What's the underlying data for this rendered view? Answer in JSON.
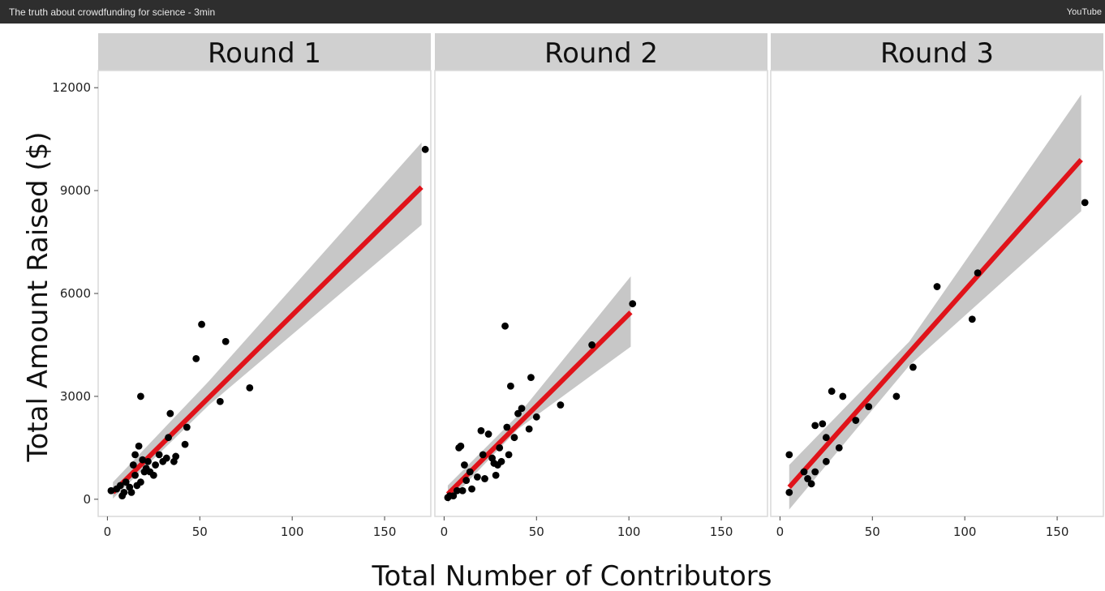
{
  "window": {
    "title": "The truth about crowdfunding for science - 3min",
    "brand": "YouTube"
  },
  "colors": {
    "topbar": "#2e2e2e",
    "panel_strip": "#d0d0d0",
    "confidence_band": "#c4c4c4",
    "fit_line": "#e0131a",
    "points": "#000000"
  },
  "chart_data": {
    "type": "scatter",
    "xlabel": "Total Number of Contributors",
    "ylabel": "Total Amount Raised ($)",
    "xlim": [
      -5,
      175
    ],
    "ylim": [
      -500,
      12500
    ],
    "x_ticks": [
      0,
      50,
      100,
      150
    ],
    "y_ticks": [
      0,
      3000,
      6000,
      9000,
      12000
    ],
    "grid": false,
    "trendline": "linear fit with confidence band",
    "panels": [
      {
        "name": "Round 1",
        "points": [
          [
            2,
            250
          ],
          [
            5,
            300
          ],
          [
            7,
            400
          ],
          [
            8,
            100
          ],
          [
            9,
            200
          ],
          [
            10,
            500
          ],
          [
            12,
            350
          ],
          [
            13,
            200
          ],
          [
            14,
            1000
          ],
          [
            15,
            1300
          ],
          [
            15,
            700
          ],
          [
            16,
            400
          ],
          [
            17,
            1550
          ],
          [
            18,
            500
          ],
          [
            18,
            3000
          ],
          [
            19,
            1150
          ],
          [
            20,
            800
          ],
          [
            21,
            900
          ],
          [
            22,
            1100
          ],
          [
            23,
            800
          ],
          [
            25,
            700
          ],
          [
            26,
            1000
          ],
          [
            28,
            1300
          ],
          [
            30,
            1100
          ],
          [
            32,
            1200
          ],
          [
            33,
            1800
          ],
          [
            34,
            2500
          ],
          [
            36,
            1100
          ],
          [
            37,
            1250
          ],
          [
            42,
            1600
          ],
          [
            43,
            2100
          ],
          [
            48,
            4100
          ],
          [
            51,
            5100
          ],
          [
            61,
            2850
          ],
          [
            64,
            4600
          ],
          [
            77,
            3250
          ],
          [
            172,
            10200
          ]
        ],
        "fit": {
          "x": [
            3,
            170
          ],
          "y": [
            200,
            9100
          ]
        },
        "band_lower": [
          [
            3,
            20
          ],
          [
            55,
            2750
          ],
          [
            170,
            8000
          ]
        ],
        "band_upper": [
          [
            3,
            500
          ],
          [
            55,
            3450
          ],
          [
            170,
            10400
          ]
        ]
      },
      {
        "name": "Round 2",
        "points": [
          [
            2,
            50
          ],
          [
            3,
            100
          ],
          [
            5,
            100
          ],
          [
            7,
            250
          ],
          [
            8,
            1500
          ],
          [
            9,
            1550
          ],
          [
            10,
            250
          ],
          [
            11,
            1000
          ],
          [
            12,
            550
          ],
          [
            14,
            800
          ],
          [
            15,
            300
          ],
          [
            18,
            650
          ],
          [
            20,
            2000
          ],
          [
            21,
            1300
          ],
          [
            22,
            600
          ],
          [
            24,
            1900
          ],
          [
            26,
            1200
          ],
          [
            27,
            1050
          ],
          [
            28,
            700
          ],
          [
            29,
            1000
          ],
          [
            30,
            1500
          ],
          [
            31,
            1100
          ],
          [
            33,
            5050
          ],
          [
            34,
            2100
          ],
          [
            35,
            1300
          ],
          [
            36,
            3300
          ],
          [
            38,
            1800
          ],
          [
            40,
            2500
          ],
          [
            42,
            2650
          ],
          [
            46,
            2050
          ],
          [
            47,
            3550
          ],
          [
            50,
            2400
          ],
          [
            63,
            2750
          ],
          [
            80,
            4500
          ],
          [
            102,
            5700
          ]
        ],
        "fit": {
          "x": [
            2,
            101
          ],
          "y": [
            150,
            5450
          ]
        },
        "band_lower": [
          [
            2,
            -100
          ],
          [
            40,
            2050
          ],
          [
            101,
            4450
          ]
        ],
        "band_upper": [
          [
            2,
            400
          ],
          [
            40,
            2450
          ],
          [
            101,
            6500
          ]
        ]
      },
      {
        "name": "Round 3",
        "points": [
          [
            5,
            1300
          ],
          [
            5,
            200
          ],
          [
            13,
            800
          ],
          [
            15,
            600
          ],
          [
            17,
            450
          ],
          [
            19,
            800
          ],
          [
            19,
            2150
          ],
          [
            23,
            2200
          ],
          [
            25,
            1100
          ],
          [
            25,
            1800
          ],
          [
            28,
            3150
          ],
          [
            32,
            1500
          ],
          [
            34,
            3000
          ],
          [
            41,
            2300
          ],
          [
            48,
            2700
          ],
          [
            63,
            3000
          ],
          [
            72,
            3850
          ],
          [
            85,
            6200
          ],
          [
            104,
            5250
          ],
          [
            107,
            6600
          ],
          [
            165,
            8650
          ]
        ],
        "fit": {
          "x": [
            5,
            163
          ],
          "y": [
            350,
            9900
          ]
        },
        "band_lower": [
          [
            5,
            -300
          ],
          [
            70,
            3900
          ],
          [
            163,
            8400
          ]
        ],
        "band_upper": [
          [
            5,
            1000
          ],
          [
            70,
            4600
          ],
          [
            163,
            11800
          ]
        ]
      }
    ]
  }
}
